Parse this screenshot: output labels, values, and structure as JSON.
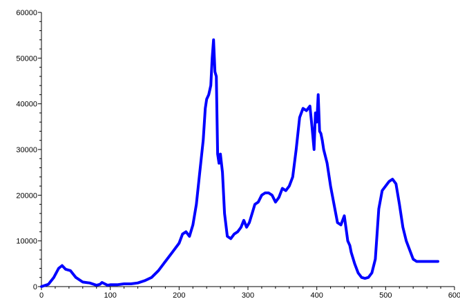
{
  "chart_data": {
    "type": "line",
    "title": "",
    "xlabel": "",
    "ylabel": "",
    "xlim": [
      0,
      600
    ],
    "ylim": [
      0,
      60000
    ],
    "x_ticks": [
      0,
      100,
      200,
      300,
      400,
      500,
      600
    ],
    "y_ticks": [
      0,
      10000,
      20000,
      30000,
      40000,
      50000,
      60000
    ],
    "x_tick_labels": [
      "0",
      "100",
      "200",
      "300",
      "400",
      "500",
      "600"
    ],
    "y_tick_labels": [
      "0",
      "10000",
      "20000",
      "30000",
      "40000",
      "50000",
      "60000"
    ],
    "grid": false,
    "series": [
      {
        "color": "#0000ff",
        "x": [
          0,
          10,
          18,
          25,
          30,
          35,
          42,
          50,
          60,
          70,
          80,
          85,
          88,
          92,
          96,
          100,
          110,
          120,
          130,
          140,
          150,
          160,
          170,
          180,
          190,
          200,
          205,
          210,
          215,
          220,
          225,
          230,
          235,
          238,
          240,
          243,
          246,
          248,
          250,
          252,
          254,
          256,
          258,
          260,
          263,
          266,
          270,
          275,
          280,
          285,
          290,
          294,
          298,
          302,
          306,
          310,
          315,
          320,
          325,
          330,
          335,
          340,
          345,
          350,
          355,
          360,
          365,
          370,
          375,
          380,
          385,
          390,
          393,
          396,
          398,
          400,
          402,
          404,
          406,
          408,
          410,
          415,
          420,
          425,
          430,
          435,
          440,
          445,
          448,
          450,
          455,
          460,
          465,
          470,
          475,
          480,
          485,
          490,
          495,
          500,
          505,
          510,
          515,
          520,
          525,
          530,
          535,
          540,
          545,
          550,
          555,
          560,
          565,
          570,
          576
        ],
        "y": [
          0,
          500,
          2000,
          4000,
          4600,
          3800,
          3500,
          2000,
          1000,
          800,
          300,
          500,
          900,
          600,
          300,
          400,
          400,
          600,
          600,
          800,
          1300,
          2000,
          3500,
          5500,
          7500,
          9500,
          11500,
          12000,
          11000,
          13500,
          18000,
          25000,
          32000,
          39000,
          41000,
          42000,
          44000,
          50000,
          54000,
          47000,
          46000,
          29000,
          27000,
          29000,
          25000,
          16000,
          11000,
          10500,
          11500,
          12000,
          13000,
          14500,
          13000,
          14000,
          16000,
          18000,
          18500,
          20000,
          20500,
          20500,
          20000,
          18500,
          19500,
          21500,
          21000,
          22000,
          24000,
          30000,
          37000,
          39000,
          38500,
          39500,
          35000,
          30000,
          38000,
          36000,
          42000,
          34000,
          33500,
          32000,
          30000,
          27000,
          22000,
          18000,
          14000,
          13500,
          15500,
          10000,
          9000,
          7500,
          5000,
          3000,
          2000,
          1800,
          2000,
          3000,
          6000,
          17000,
          21000,
          22000,
          23000,
          23500,
          22500,
          18000,
          13000,
          10000,
          8000,
          6000,
          5500,
          5500,
          5500,
          5500,
          5500,
          5500,
          5500
        ]
      }
    ]
  }
}
